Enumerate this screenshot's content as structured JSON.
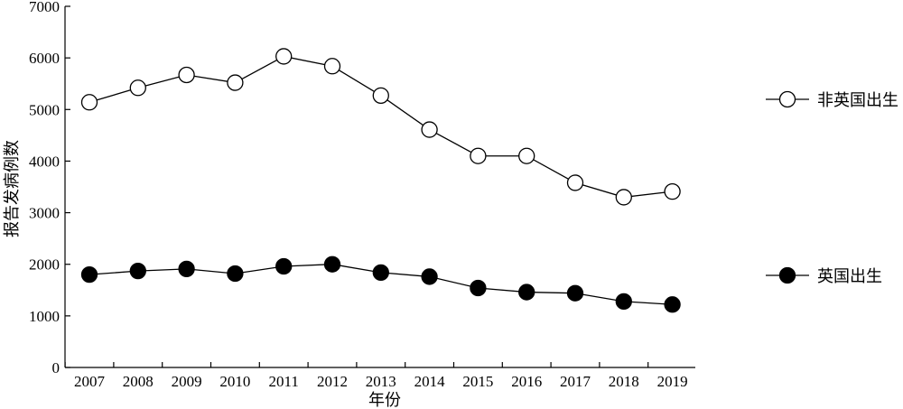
{
  "chart_data": {
    "type": "line",
    "title": "",
    "xlabel": "年份",
    "ylabel": "报告发病例数",
    "x": [
      "2007",
      "2008",
      "2009",
      "2010",
      "2011",
      "2012",
      "2013",
      "2014",
      "2015",
      "2016",
      "2017",
      "2018",
      "2019"
    ],
    "ylim": [
      0,
      7000
    ],
    "yticks": [
      0,
      1000,
      2000,
      3000,
      4000,
      5000,
      6000,
      7000
    ],
    "grid": false,
    "legend_position": "right",
    "series": [
      {
        "name": "非英国出生",
        "marker": "open-circle",
        "values": [
          5140,
          5420,
          5670,
          5520,
          6030,
          5840,
          5270,
          4610,
          4100,
          4100,
          3580,
          3300,
          3410
        ]
      },
      {
        "name": "英国出生",
        "marker": "filled-circle",
        "values": [
          1800,
          1870,
          1910,
          1820,
          1960,
          2000,
          1840,
          1760,
          1540,
          1460,
          1440,
          1280,
          1220
        ]
      }
    ]
  }
}
